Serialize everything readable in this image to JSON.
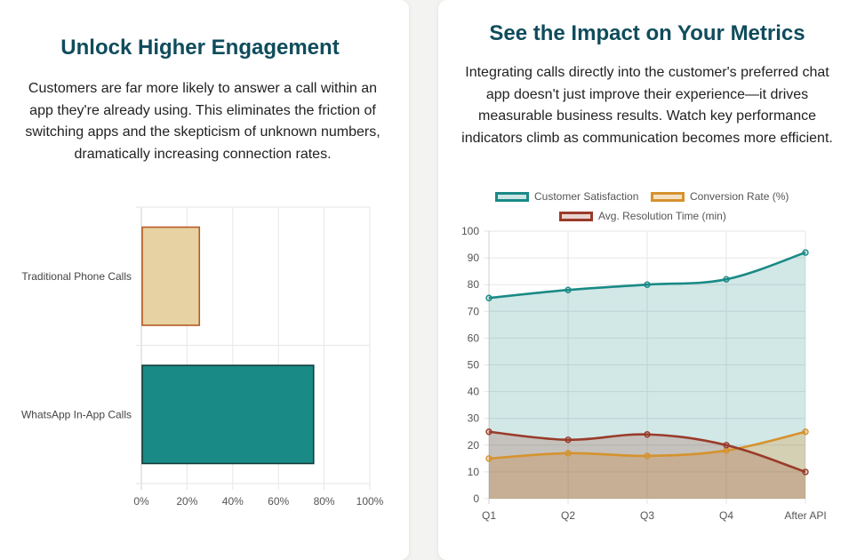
{
  "left_card": {
    "title": "Unlock Higher Engagement",
    "body": "Customers are far more likely to answer a call within an app they're already using. This eliminates the friction of switching apps and the skepticism of unknown numbers, dramatically increasing connection rates."
  },
  "right_card": {
    "title": "See the Impact on Your Metrics",
    "body": "Integrating calls directly into the customer's preferred chat app doesn't just improve their experience—it drives measurable business results. Watch key performance indicators climb as communication becomes more efficient."
  },
  "colors": {
    "title": "#0f4c5c",
    "teal": "#1a8a86",
    "teal_fill": "#1a8a86",
    "beige": "#e6d2a2",
    "rust": "#b85a24",
    "orange": "#d6922e",
    "brown": "#9a3b2a"
  },
  "chart_data": [
    {
      "type": "bar",
      "orientation": "horizontal",
      "categories": [
        "Traditional Phone Calls",
        "WhatsApp In-App Calls"
      ],
      "values": [
        25,
        75
      ],
      "xlim": [
        0,
        100
      ],
      "xticks": [
        "0%",
        "20%",
        "40%",
        "60%",
        "80%",
        "100%"
      ],
      "title": "",
      "xlabel": "",
      "ylabel": ""
    },
    {
      "type": "area",
      "categories": [
        "Q1",
        "Q2",
        "Q3",
        "Q4",
        "After API"
      ],
      "ylim": [
        0,
        100
      ],
      "yticks": [
        "0",
        "10",
        "20",
        "30",
        "40",
        "50",
        "60",
        "70",
        "80",
        "90",
        "100"
      ],
      "legend": "top",
      "series": [
        {
          "name": "Customer Satisfaction",
          "values": [
            75,
            78,
            80,
            82,
            92
          ]
        },
        {
          "name": "Conversion Rate (%)",
          "values": [
            15,
            17,
            16,
            18,
            25
          ]
        },
        {
          "name": "Avg. Resolution Time (min)",
          "values": [
            25,
            22,
            24,
            20,
            10
          ]
        }
      ]
    }
  ]
}
